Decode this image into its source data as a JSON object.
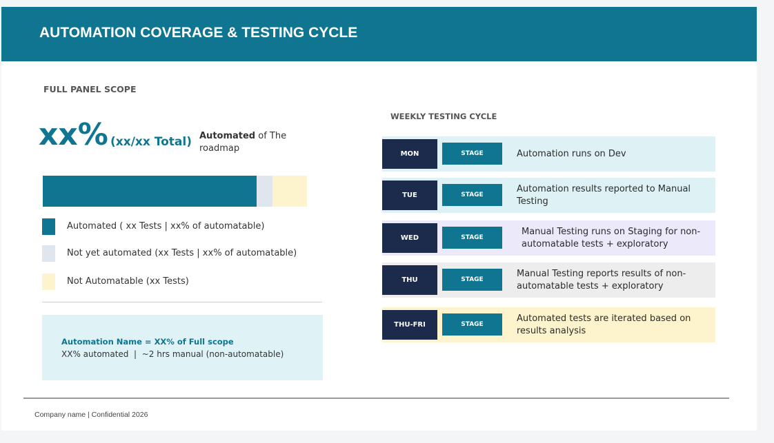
{
  "header": {
    "title": "AUTOMATION COVERAGE & TESTING CYCLE"
  },
  "scope": {
    "heading": "FULL PANEL SCOPE",
    "big": "xx%",
    "total": "(xx/xx Total)",
    "note_bold": "Automated",
    "note_rest": " of The roadmap",
    "legend": [
      "Automated ( xx Tests | xx% of automatable)",
      "Not yet automated (xx Tests | xx% of automatable)",
      "Not Automatable (xx Tests)"
    ],
    "callout": {
      "title": "Automation Name = XX% of Full scope",
      "text": "XX% automated  |  ~2 hrs manual (non-automatable)"
    }
  },
  "cycle": {
    "heading": "WEEKLY TESTING CYCLE",
    "rows": [
      {
        "day": "MON",
        "stage": "STAGE",
        "text": "Automation runs on Dev"
      },
      {
        "day": "TUE",
        "stage": "STAGE",
        "text": "Automation results reported to Manual Testing"
      },
      {
        "day": "WED",
        "stage": "STAGE",
        "text": "Manual Testing runs on Staging for non-automatable tests + exploratory"
      },
      {
        "day": "THU",
        "stage": "STAGE",
        "text": "Manual Testing reports results of non-automatable tests + exploratory"
      },
      {
        "day": "THU-FRI",
        "stage": "STAGE",
        "text": "Automated tests are iterated based on results analysis"
      }
    ]
  },
  "footer": {
    "text": "Company name | Confidential 2026"
  }
}
